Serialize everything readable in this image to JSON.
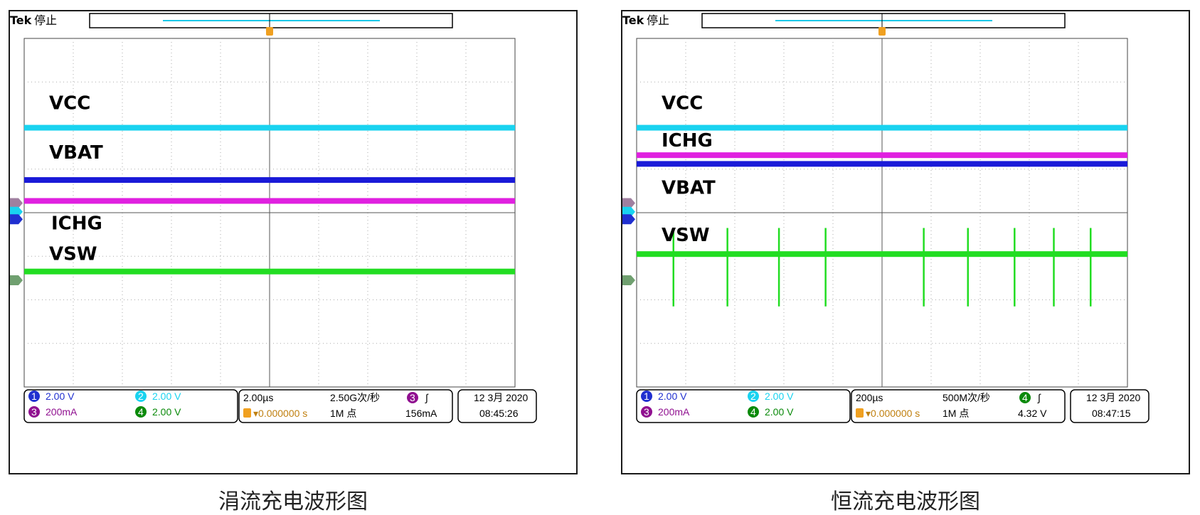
{
  "panels": [
    {
      "id": "left",
      "caption": "涓流充电波形图",
      "header": {
        "brand": "Tek",
        "state": "停止"
      },
      "labels": {
        "vcc": "VCC",
        "vbat": "VBAT",
        "ichg": "ICHG",
        "vsw": "VSW"
      },
      "status": {
        "ch1": "2.00 V",
        "ch2": "2.00 V",
        "ch3": "200mA",
        "ch4": "2.00 V",
        "timebase": "2.00µs",
        "sample_rate": "2.50G次/秒",
        "trigger_source": "3",
        "trigger_pos": "▾0.000000 s",
        "record_len": "1M 点",
        "trigger_level": "156mA",
        "date": "12 3月 2020",
        "time": "08:45:26"
      }
    },
    {
      "id": "right",
      "caption": "恒流充电波形图",
      "header": {
        "brand": "Tek",
        "state": "停止"
      },
      "labels": {
        "vcc": "VCC",
        "ichg": "ICHG",
        "vbat": "VBAT",
        "vsw": "VSW"
      },
      "status": {
        "ch1": "2.00 V",
        "ch2": "2.00 V",
        "ch3": "200mA",
        "ch4": "2.00 V",
        "timebase": "200µs",
        "sample_rate": "500M次/秒",
        "trigger_source": "4",
        "trigger_pos": "▾0.000000 s",
        "record_len": "1M 点",
        "trigger_level": "4.32 V",
        "date": "12 3月 2020",
        "time": "08:47:15"
      }
    }
  ],
  "chart_data": [
    {
      "type": "line",
      "title": "涓流充电波形图",
      "x_divisions": 10,
      "y_divisions": 8,
      "series": [
        {
          "name": "VCC",
          "color": "#19d3f0",
          "y_div": 1.95,
          "shape": "flat"
        },
        {
          "name": "VBAT",
          "color": "#1a1ad8",
          "y_div": 0.75,
          "shape": "flat"
        },
        {
          "name": "ICHG",
          "color": "#e020e0",
          "y_div": 0.27,
          "shape": "flat"
        },
        {
          "name": "VSW",
          "color": "#22dd22",
          "y_div": -1.35,
          "shape": "flat"
        }
      ]
    },
    {
      "type": "line",
      "title": "恒流充电波形图",
      "x_divisions": 10,
      "y_divisions": 8,
      "series": [
        {
          "name": "VCC",
          "color": "#19d3f0",
          "y_div": 1.95,
          "shape": "flat"
        },
        {
          "name": "ICHG",
          "color": "#e020e0",
          "y_div": 1.32,
          "shape": "flat"
        },
        {
          "name": "VBAT",
          "color": "#1a1ad8",
          "y_div": 1.12,
          "shape": "flat"
        },
        {
          "name": "VSW",
          "color": "#22dd22",
          "y_div": -0.95,
          "shape": "spikes",
          "spike_x_div": [
            0.75,
            1.85,
            2.9,
            3.85,
            5.85,
            6.75,
            7.7,
            8.5,
            9.25
          ],
          "spike_up_div": 0.6,
          "spike_down_div": 1.2
        }
      ]
    }
  ]
}
